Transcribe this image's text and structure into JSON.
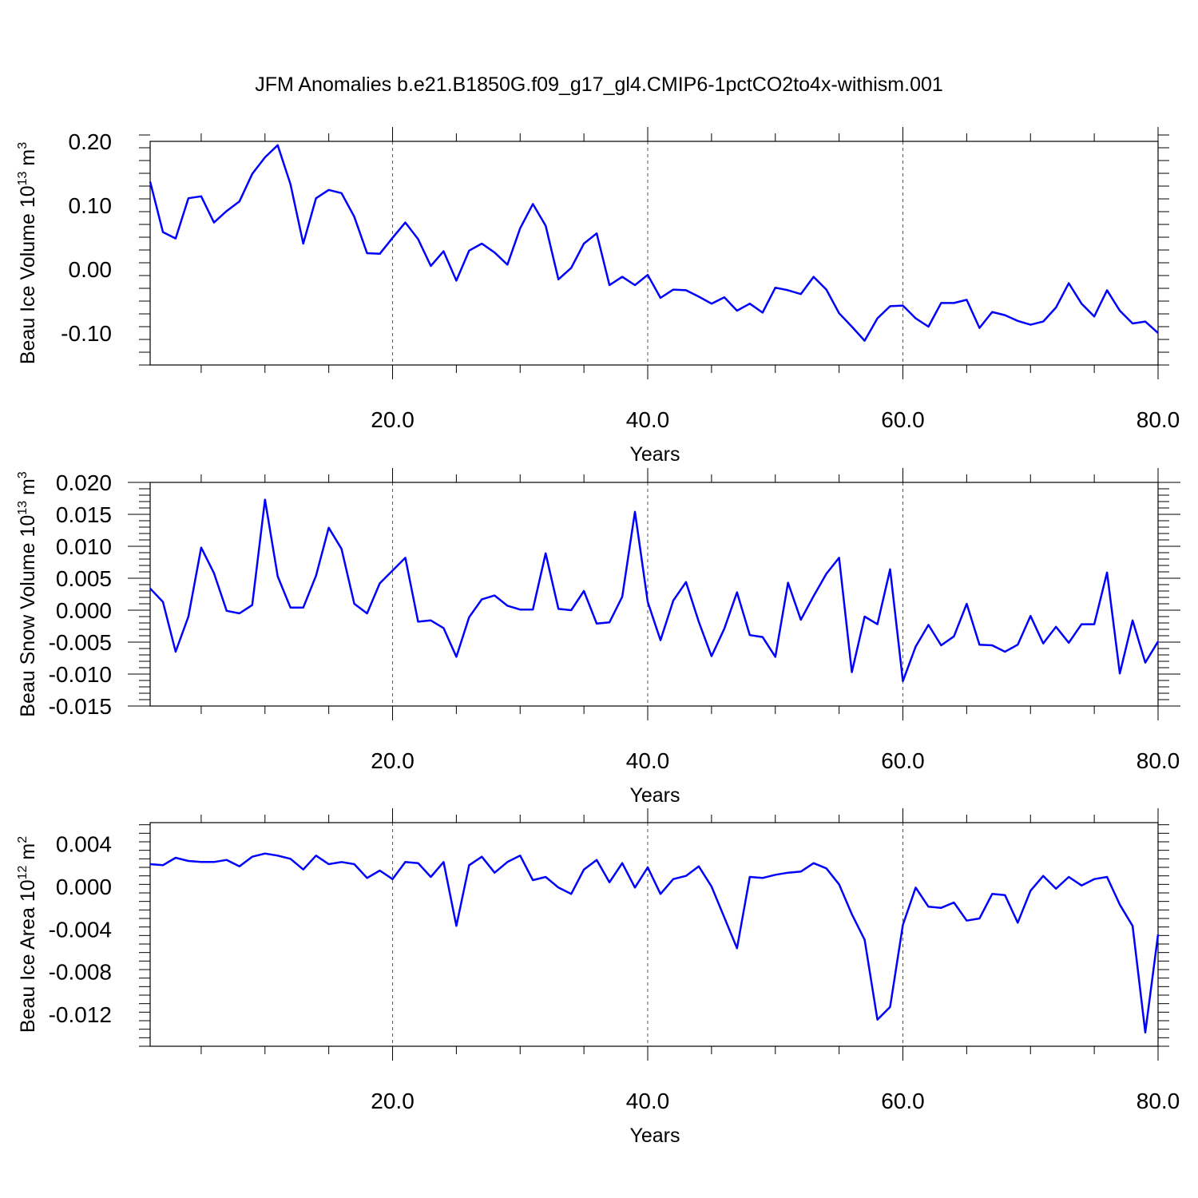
{
  "figure": {
    "title": "JFM Anomalies b.e21.B1850G.f09_g17_gl4.CMIP6-1pctCO2to4x-withism.001"
  },
  "colors": {
    "line": "#0000ff",
    "axes": "#000000",
    "background": "#ffffff"
  },
  "chart_data": [
    {
      "type": "line",
      "xlabel": "Years",
      "ylabel_main": "Beau Ice Volume 10",
      "ylabel_exp": "13",
      "ylabel_unit": " m",
      "ylabel_unit_exp": "3",
      "xlim": [
        1,
        80
      ],
      "ylim": [
        -0.15,
        0.2
      ],
      "xticks": [
        20,
        40,
        60,
        80
      ],
      "xtick_labels": [
        "20.0",
        "40.0",
        "60.0",
        "80.0"
      ],
      "yticks": [
        0.2,
        0.1,
        0.0,
        -0.1
      ],
      "ytick_labels": [
        "0.20",
        "0.10",
        "0.00",
        "-0.10"
      ],
      "grid_x": true,
      "x": [
        1,
        2,
        3,
        4,
        5,
        6,
        7,
        8,
        9,
        10,
        11,
        12,
        13,
        14,
        15,
        16,
        17,
        18,
        19,
        20,
        21,
        22,
        23,
        24,
        25,
        26,
        27,
        28,
        29,
        30,
        31,
        32,
        33,
        34,
        35,
        36,
        37,
        38,
        39,
        40,
        41,
        42,
        43,
        44,
        45,
        46,
        47,
        48,
        49,
        50,
        51,
        52,
        53,
        54,
        55,
        56,
        57,
        58,
        59,
        60,
        61,
        62,
        63,
        64,
        65,
        66,
        67,
        68,
        69,
        70,
        71,
        72,
        73,
        74,
        75,
        76,
        77,
        78,
        79,
        80
      ],
      "values": [
        0.137,
        0.058,
        0.048,
        0.111,
        0.114,
        0.073,
        0.091,
        0.106,
        0.149,
        0.175,
        0.194,
        0.133,
        0.04,
        0.111,
        0.124,
        0.119,
        0.082,
        0.025,
        0.024,
        0.049,
        0.073,
        0.047,
        0.005,
        0.028,
        -0.018,
        0.029,
        0.04,
        0.026,
        0.007,
        0.064,
        0.102,
        0.068,
        -0.016,
        0.002,
        0.04,
        0.056,
        -0.025,
        -0.012,
        -0.025,
        -0.009,
        -0.045,
        -0.032,
        -0.033,
        -0.043,
        -0.054,
        -0.044,
        -0.065,
        -0.054,
        -0.068,
        -0.029,
        -0.033,
        -0.039,
        -0.012,
        -0.032,
        -0.069,
        -0.09,
        -0.112,
        -0.077,
        -0.058,
        -0.057,
        -0.077,
        -0.09,
        -0.053,
        -0.053,
        -0.048,
        -0.092,
        -0.067,
        -0.072,
        -0.081,
        -0.087,
        -0.082,
        -0.06,
        -0.022,
        -0.054,
        -0.074,
        -0.033,
        -0.065,
        -0.085,
        -0.082,
        -0.1
      ]
    },
    {
      "type": "line",
      "xlabel": "Years",
      "ylabel_main": "Beau Snow Volume 10",
      "ylabel_exp": "13",
      "ylabel_unit": " m",
      "ylabel_unit_exp": "3",
      "xlim": [
        1,
        80
      ],
      "ylim": [
        -0.015,
        0.02
      ],
      "xticks": [
        20,
        40,
        60,
        80
      ],
      "xtick_labels": [
        "20.0",
        "40.0",
        "60.0",
        "80.0"
      ],
      "yticks": [
        0.02,
        0.015,
        0.01,
        0.005,
        0.0,
        -0.005,
        -0.01,
        -0.015
      ],
      "ytick_labels": [
        "0.020",
        "0.015",
        "0.010",
        "0.005",
        "0.000",
        "-0.005",
        "-0.010",
        "-0.015"
      ],
      "grid_x": true,
      "x": [
        1,
        2,
        3,
        4,
        5,
        6,
        7,
        8,
        9,
        10,
        11,
        12,
        13,
        14,
        15,
        16,
        17,
        18,
        19,
        20,
        21,
        22,
        23,
        24,
        25,
        26,
        27,
        28,
        29,
        30,
        31,
        32,
        33,
        34,
        35,
        36,
        37,
        38,
        39,
        40,
        41,
        42,
        43,
        44,
        45,
        46,
        47,
        48,
        49,
        50,
        51,
        52,
        53,
        54,
        55,
        56,
        57,
        58,
        59,
        60,
        61,
        62,
        63,
        64,
        65,
        66,
        67,
        68,
        69,
        70,
        71,
        72,
        73,
        74,
        75,
        76,
        77,
        78,
        79,
        80
      ],
      "values": [
        0.0034,
        0.0013,
        -0.0065,
        -0.001,
        0.0098,
        0.0058,
        -0.0001,
        -0.0005,
        0.0008,
        0.0173,
        0.0053,
        0.0004,
        0.0004,
        0.0054,
        0.0129,
        0.0096,
        0.001,
        -0.0005,
        0.0042,
        0.0062,
        0.0082,
        -0.0018,
        -0.0016,
        -0.0028,
        -0.0073,
        -0.0011,
        0.0017,
        0.0023,
        0.0007,
        0.0001,
        0.0001,
        0.0089,
        0.0002,
        0.0,
        0.003,
        -0.0021,
        -0.0019,
        0.0021,
        0.0154,
        0.0013,
        -0.0047,
        0.0015,
        0.0044,
        -0.0018,
        -0.0072,
        -0.0029,
        0.0028,
        -0.0039,
        -0.0042,
        -0.0073,
        0.0043,
        -0.0015,
        0.0022,
        0.0057,
        0.0082,
        -0.0097,
        -0.001,
        -0.0022,
        0.0064,
        -0.0111,
        -0.0057,
        -0.0023,
        -0.0055,
        -0.0041,
        0.001,
        -0.0054,
        -0.0055,
        -0.0065,
        -0.0054,
        -0.0009,
        -0.0052,
        -0.0026,
        -0.0051,
        -0.0022,
        -0.0022,
        0.0059,
        -0.0099,
        -0.0016,
        -0.0082,
        -0.0049
      ]
    },
    {
      "type": "line",
      "xlabel": "Years",
      "ylabel_main": "Beau Ice Area 10",
      "ylabel_exp": "12",
      "ylabel_unit": " m",
      "ylabel_unit_exp": "2",
      "xlim": [
        1,
        80
      ],
      "ylim": [
        -0.015,
        0.006
      ],
      "xticks": [
        20,
        40,
        60,
        80
      ],
      "xtick_labels": [
        "20.0",
        "40.0",
        "60.0",
        "80.0"
      ],
      "yticks": [
        0.004,
        0.0,
        -0.004,
        -0.008,
        -0.012
      ],
      "ytick_labels": [
        "0.004",
        "0.000",
        "-0.004",
        "-0.008",
        "-0.012"
      ],
      "grid_x": true,
      "x": [
        1,
        2,
        3,
        4,
        5,
        6,
        7,
        8,
        9,
        10,
        11,
        12,
        13,
        14,
        15,
        16,
        17,
        18,
        19,
        20,
        21,
        22,
        23,
        24,
        25,
        26,
        27,
        28,
        29,
        30,
        31,
        32,
        33,
        34,
        35,
        36,
        37,
        38,
        39,
        40,
        41,
        42,
        43,
        44,
        45,
        46,
        47,
        48,
        49,
        50,
        51,
        52,
        53,
        54,
        55,
        56,
        57,
        58,
        59,
        60,
        61,
        62,
        63,
        64,
        65,
        66,
        67,
        68,
        69,
        70,
        71,
        72,
        73,
        74,
        75,
        76,
        77,
        78,
        79,
        80
      ],
      "values": [
        0.0021,
        0.002,
        0.0027,
        0.0024,
        0.0023,
        0.0023,
        0.0025,
        0.0019,
        0.0028,
        0.0031,
        0.0029,
        0.0026,
        0.0016,
        0.0029,
        0.0021,
        0.0023,
        0.0021,
        0.0008,
        0.0015,
        0.0007,
        0.0023,
        0.0022,
        0.0009,
        0.0023,
        -0.0037,
        0.002,
        0.0028,
        0.0013,
        0.0023,
        0.0029,
        0.0006,
        0.0009,
        -0.0001,
        -0.0007,
        0.0016,
        0.0025,
        0.0004,
        0.0022,
        -0.0001,
        0.0018,
        -0.0007,
        0.0007,
        0.001,
        0.0019,
        0.0,
        -0.0029,
        -0.0058,
        0.0009,
        0.0008,
        0.0011,
        0.0013,
        0.0014,
        0.0022,
        0.0017,
        0.0002,
        -0.0026,
        -0.005,
        -0.0125,
        -0.0113,
        -0.0036,
        -0.0001,
        -0.0019,
        -0.002,
        -0.0015,
        -0.0032,
        -0.003,
        -0.0007,
        -0.0008,
        -0.0034,
        -0.0004,
        0.001,
        -0.0002,
        0.0009,
        0.0001,
        0.0007,
        0.0009,
        -0.0017,
        -0.0037,
        -0.0137,
        -0.0045
      ]
    }
  ]
}
